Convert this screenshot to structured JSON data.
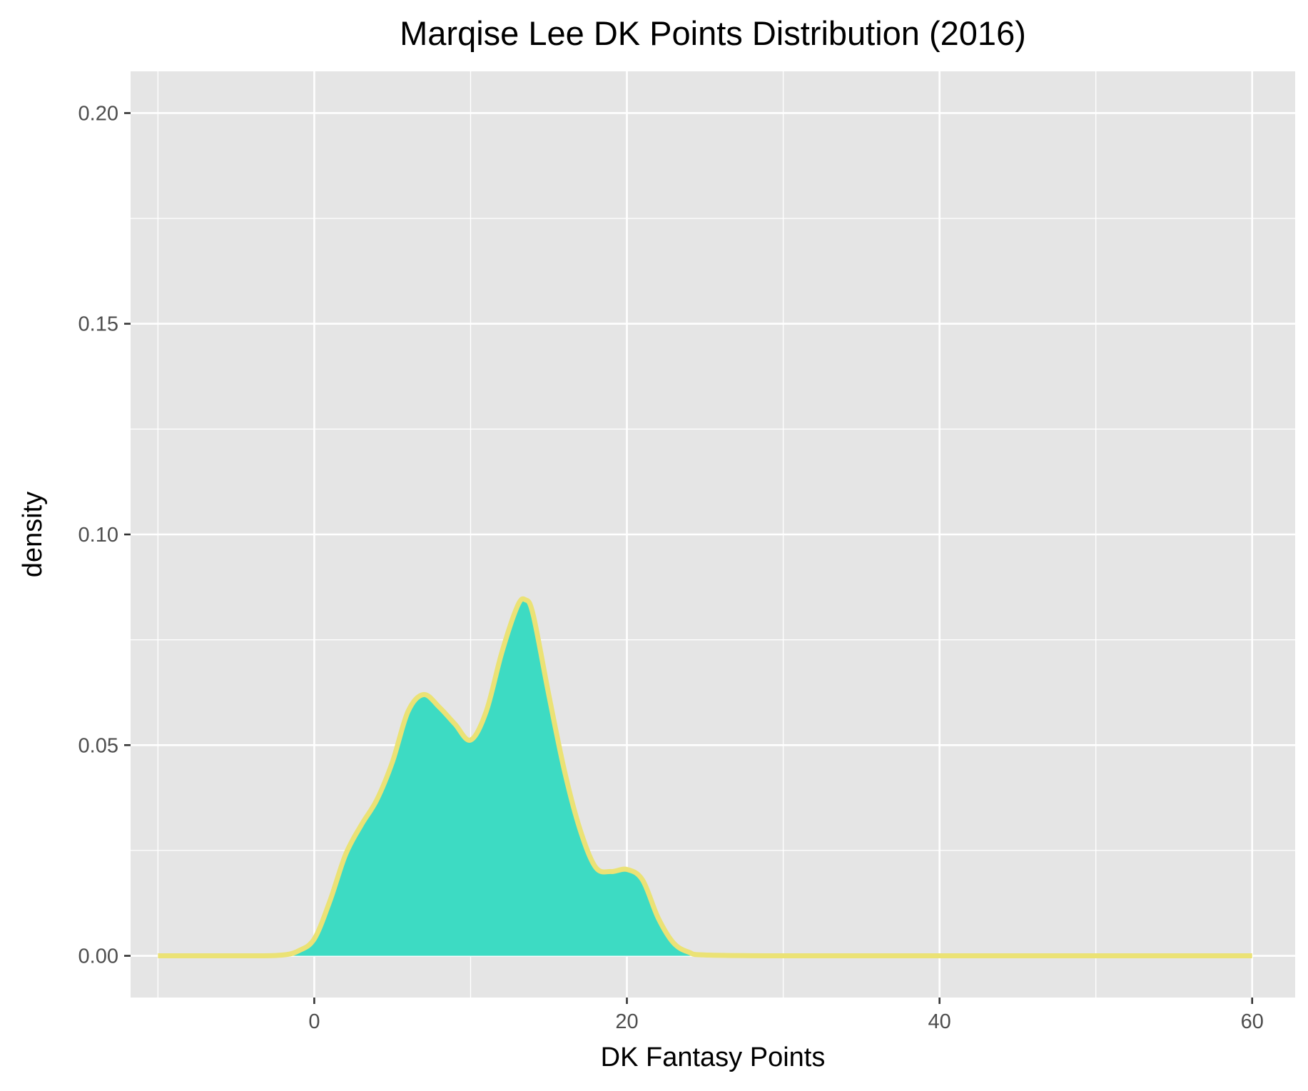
{
  "chart_data": {
    "type": "area",
    "title": "Marqise Lee DK Points Distribution (2016)",
    "xlabel": "DK Fantasy Points",
    "ylabel": "density",
    "xlim": [
      -11.75,
      62.75
    ],
    "ylim": [
      -0.0099,
      0.2099
    ],
    "x_ticks": [
      0,
      20,
      40,
      60
    ],
    "x_tick_labels": [
      "0",
      "20",
      "40",
      "60"
    ],
    "x_minor_ticks": [
      -10,
      10,
      30,
      50
    ],
    "y_ticks": [
      0,
      0.05,
      0.1,
      0.15,
      0.2
    ],
    "y_tick_labels": [
      "0.00",
      "0.05",
      "0.10",
      "0.15",
      "0.20"
    ],
    "y_minor_ticks": [
      0.025,
      0.075,
      0.125,
      0.175
    ],
    "grid": true,
    "legend": "none",
    "series": [
      {
        "fill_color": "#3ddbc3",
        "line_color": "#ebe275",
        "x": [
          -10,
          -4,
          -2,
          -1,
          0,
          1,
          2,
          3,
          4,
          5,
          6,
          7,
          8,
          9,
          10,
          11,
          12,
          13,
          13.5,
          14,
          15,
          16,
          17,
          18,
          19,
          20,
          21,
          22,
          23,
          24,
          25,
          30,
          40,
          50,
          60
        ],
        "y": [
          0,
          0,
          0.0002,
          0.0012,
          0.004,
          0.013,
          0.024,
          0.031,
          0.037,
          0.046,
          0.058,
          0.062,
          0.059,
          0.055,
          0.0512,
          0.058,
          0.072,
          0.083,
          0.0845,
          0.081,
          0.062,
          0.044,
          0.03,
          0.021,
          0.02,
          0.0205,
          0.018,
          0.009,
          0.003,
          0.0008,
          0.0002,
          0,
          0,
          0,
          0
        ]
      }
    ],
    "colors": {
      "panel_background": "#e5e5e5",
      "grid_line": "#ffffff",
      "tick_mark": "#333333"
    }
  }
}
